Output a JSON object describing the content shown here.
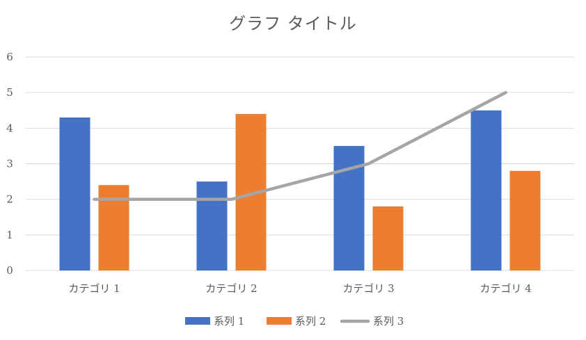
{
  "chart_data": {
    "type": "bar",
    "title": "グラフ タイトル",
    "xlabel": "",
    "ylabel": "",
    "categories": [
      "カテゴリ 1",
      "カテゴリ 2",
      "カテゴリ 3",
      "カテゴリ 4"
    ],
    "ylim": [
      0,
      6
    ],
    "yticks": [
      "0",
      "1",
      "2",
      "3",
      "4",
      "5",
      "6"
    ],
    "grid": true,
    "legend_position": "bottom",
    "series": [
      {
        "name": "系列 1",
        "kind": "bar",
        "color": "#4472C4",
        "values": [
          4.3,
          2.5,
          3.5,
          4.5
        ]
      },
      {
        "name": "系列 2",
        "kind": "bar",
        "color": "#ED7D31",
        "values": [
          2.4,
          4.4,
          1.8,
          2.8
        ]
      },
      {
        "name": "系列 3",
        "kind": "line",
        "color": "#A5A5A5",
        "values": [
          2,
          2,
          3,
          5
        ]
      }
    ]
  }
}
